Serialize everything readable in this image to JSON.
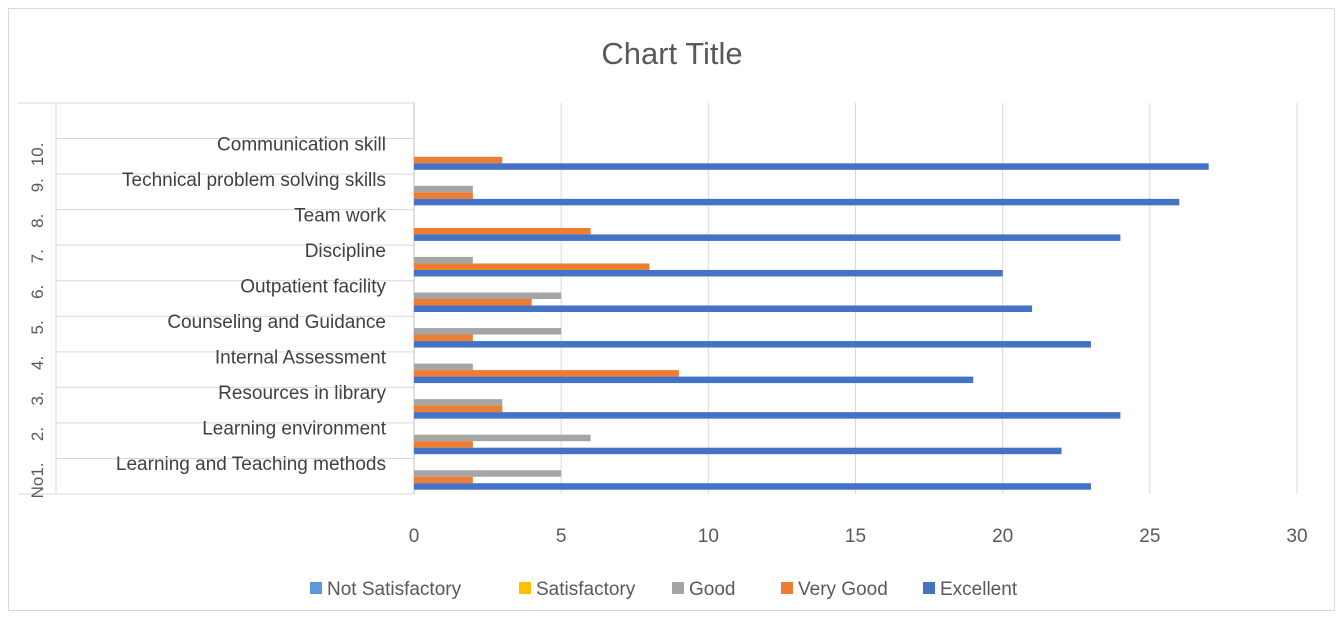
{
  "chart_data": {
    "type": "bar",
    "orientation": "horizontal",
    "title": "Chart Title",
    "xlim": [
      0,
      30
    ],
    "x_ticks": [
      "0",
      "5",
      "10",
      "15",
      "20",
      "25",
      "30"
    ],
    "grid": true,
    "legend_position": "bottom",
    "categories": [
      {
        "number": "No1.",
        "label": "Learning and Teaching methods"
      },
      {
        "number": "2.",
        "label": "Learning environment"
      },
      {
        "number": "3.",
        "label": "Resources in library"
      },
      {
        "number": "4.",
        "label": "Internal Assessment"
      },
      {
        "number": "5.",
        "label": "Counseling and Guidance"
      },
      {
        "number": "6.",
        "label": "Outpatient facility"
      },
      {
        "number": "7.",
        "label": "Discipline"
      },
      {
        "number": "8.",
        "label": "Team work"
      },
      {
        "number": "9.",
        "label": "Technical problem solving skills"
      },
      {
        "number": "10.",
        "label": "Communication skill"
      }
    ],
    "series": [
      {
        "name": "Not Satisfactory",
        "color": "#5b9bd5",
        "values": [
          0,
          0,
          0,
          0,
          0,
          0,
          0,
          0,
          0,
          0
        ]
      },
      {
        "name": "Satisfactory",
        "color": "#ffc000",
        "values": [
          0,
          0,
          0,
          0,
          0,
          0,
          0,
          0,
          0,
          0
        ]
      },
      {
        "name": "Good",
        "color": "#a5a5a5",
        "values": [
          5,
          6,
          3,
          2,
          5,
          5,
          2,
          0,
          2,
          0
        ]
      },
      {
        "name": "Very Good",
        "color": "#ed7d31",
        "values": [
          2,
          2,
          3,
          9,
          2,
          4,
          8,
          6,
          2,
          3
        ]
      },
      {
        "name": "Excellent",
        "color": "#4472c4",
        "values": [
          23,
          22,
          24,
          19,
          23,
          21,
          20,
          24,
          26,
          27
        ]
      }
    ]
  }
}
